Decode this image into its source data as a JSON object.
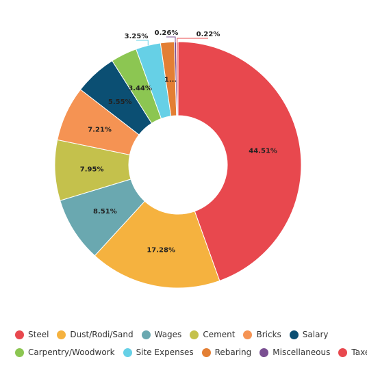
{
  "chart_data": {
    "type": "pie",
    "donut": true,
    "title": "",
    "legend_position": "bottom",
    "categories": [
      "Steel",
      "Dust/Rodi/Sand",
      "Wages",
      "Cement",
      "Bricks",
      "Salary",
      "Carpentry/Woodwork",
      "Site Expenses",
      "Rebaring",
      "Miscellaneous",
      "Taxes"
    ],
    "values": [
      44.51,
      17.28,
      8.51,
      7.95,
      7.21,
      5.55,
      3.44,
      3.25,
      1.8,
      0.26,
      0.22
    ],
    "labels": [
      "44.51%",
      "17.28%",
      "8.51%",
      "7.95%",
      "7.21%",
      "5.55%",
      "3.44%",
      "3.25%",
      "1...",
      "0.26%",
      "0.22%"
    ],
    "colors": [
      "#e8484e",
      "#f5b23f",
      "#6aa8b0",
      "#c4c14c",
      "#f59353",
      "#0b4f73",
      "#8cc652",
      "#66d0e6",
      "#e37f34",
      "#7a4f92",
      "#e8484e"
    ]
  },
  "legend": {
    "rows": [
      [
        {
          "label": "Steel",
          "color": "#e8484e"
        },
        {
          "label": "Dust/Rodi/Sand",
          "color": "#f5b23f"
        },
        {
          "label": "Wages",
          "color": "#6aa8b0"
        },
        {
          "label": "Cement",
          "color": "#c4c14c"
        },
        {
          "label": "Bricks",
          "color": "#f59353"
        },
        {
          "label": "Salary",
          "color": "#0b4f73"
        }
      ],
      [
        {
          "label": "Carpentry/Woodwork",
          "color": "#8cc652"
        },
        {
          "label": "Site Expenses",
          "color": "#66d0e6"
        },
        {
          "label": "Rebaring",
          "color": "#e37f34"
        },
        {
          "label": "Miscellaneous",
          "color": "#7a4f92"
        },
        {
          "label": "Taxes",
          "color": "#e8484e"
        }
      ]
    ]
  }
}
